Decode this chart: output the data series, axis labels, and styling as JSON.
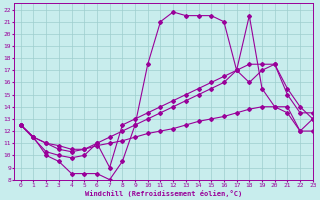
{
  "xlabel": "Windchill (Refroidissement éolien,°C)",
  "xlim": [
    -0.5,
    23
  ],
  "ylim": [
    8,
    22.5
  ],
  "yticks": [
    8,
    9,
    10,
    11,
    12,
    13,
    14,
    15,
    16,
    17,
    18,
    19,
    20,
    21,
    22
  ],
  "xticks": [
    0,
    1,
    2,
    3,
    4,
    5,
    6,
    7,
    8,
    9,
    10,
    11,
    12,
    13,
    14,
    15,
    16,
    17,
    18,
    19,
    20,
    21,
    22,
    23
  ],
  "bg_color": "#c8eded",
  "grid_color": "#9ecece",
  "line_color": "#990099",
  "series1_x": [
    0,
    1,
    2,
    3,
    4,
    5,
    6,
    7,
    8,
    9,
    10,
    11,
    12,
    13,
    14,
    15,
    16,
    17,
    18,
    19,
    20,
    21,
    22,
    23
  ],
  "series1_y": [
    12.5,
    11.5,
    10.0,
    9.5,
    8.5,
    8.5,
    8.5,
    8.0,
    9.5,
    12.5,
    17.5,
    21.0,
    21.8,
    21.5,
    21.5,
    21.5,
    21.0,
    17.0,
    21.5,
    15.5,
    14.0,
    13.5,
    12.0,
    13.0
  ],
  "series2_x": [
    0,
    2,
    3,
    4,
    5,
    6,
    7,
    8,
    9,
    10,
    11,
    12,
    13,
    14,
    15,
    16,
    17,
    18,
    19,
    20,
    21,
    22,
    23
  ],
  "series2_y": [
    12.5,
    10.3,
    10.0,
    9.8,
    10.0,
    11.0,
    9.0,
    12.5,
    13.0,
    13.5,
    14.0,
    14.5,
    15.0,
    15.5,
    16.0,
    16.5,
    17.0,
    16.0,
    17.0,
    17.5,
    15.5,
    14.0,
    13.0
  ],
  "series3_x": [
    0,
    1,
    2,
    3,
    4,
    5,
    6,
    7,
    8,
    9,
    10,
    11,
    12,
    13,
    14,
    15,
    16,
    17,
    18,
    19,
    20,
    21,
    22,
    23
  ],
  "series3_y": [
    12.5,
    11.5,
    11.0,
    10.5,
    10.3,
    10.5,
    11.0,
    11.5,
    12.0,
    12.5,
    13.0,
    13.5,
    14.0,
    14.5,
    15.0,
    15.5,
    16.0,
    17.0,
    17.5,
    17.5,
    17.5,
    15.0,
    13.5,
    13.5
  ],
  "series4_x": [
    0,
    1,
    2,
    3,
    4,
    5,
    6,
    7,
    8,
    9,
    10,
    11,
    12,
    13,
    14,
    15,
    16,
    17,
    18,
    19,
    20,
    21,
    22,
    23
  ],
  "series4_y": [
    12.5,
    11.5,
    11.0,
    10.8,
    10.5,
    10.5,
    10.8,
    11.0,
    11.2,
    11.5,
    11.8,
    12.0,
    12.2,
    12.5,
    12.8,
    13.0,
    13.2,
    13.5,
    13.8,
    14.0,
    14.0,
    14.0,
    12.0,
    12.0
  ]
}
